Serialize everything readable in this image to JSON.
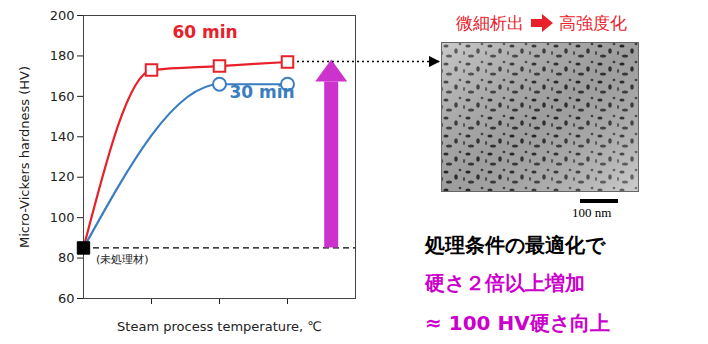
{
  "chart_data": {
    "type": "line",
    "x_label": "Steam process temperature, ℃",
    "y_label": "Micro-Vickers hardness (HV)",
    "x": [
      0,
      1,
      2,
      3
    ],
    "series": [
      {
        "name": "(未処理材)",
        "color": "#000000",
        "type": "scatter",
        "marker": "filled_square",
        "line_style": "dashed",
        "values": [
          85,
          null,
          null,
          null
        ]
      },
      {
        "name": "60 min",
        "color": "#e8202a",
        "type": "line",
        "marker": "square",
        "values": [
          null,
          173,
          175,
          177
        ]
      },
      {
        "name": "30 min",
        "color": "#3a7dc0",
        "type": "line",
        "marker": "circle",
        "values": [
          null,
          null,
          166,
          166
        ]
      }
    ],
    "xlim": [
      0,
      4
    ],
    "xticks": [
      1,
      2,
      3
    ],
    "ylim": [
      60,
      200
    ],
    "yticks": [
      60,
      80,
      100,
      120,
      140,
      160,
      180,
      200
    ],
    "grid": false,
    "tick_labels": "y",
    "annotations": [
      {
        "type": "arrow",
        "x": 3.65,
        "from": 85,
        "to": 178,
        "color": "#cc33cc"
      }
    ]
  },
  "micrograph": {
    "heading": [
      "微細析出",
      "高強度化"
    ],
    "heading_color": "#e8202a",
    "scale_bar": "100 nm"
  },
  "notes": [
    {
      "text": "処理条件の最適化で",
      "color": "#000000"
    },
    {
      "text": "硬さ２倍以上増加",
      "color": "#cc00cc"
    },
    {
      "text": "≈ 100 HV硬さ向上",
      "color": "#cc00cc"
    }
  ]
}
